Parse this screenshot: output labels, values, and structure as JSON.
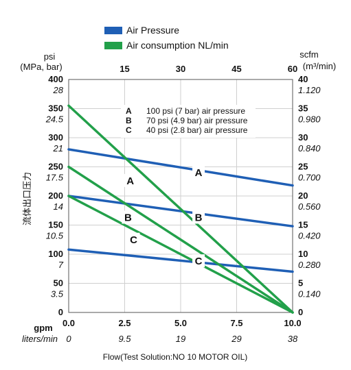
{
  "chart_data": {
    "type": "line",
    "legend": [
      {
        "label": "Air Pressure",
        "color": "#1f5fb5"
      },
      {
        "label": "Air consumption NL/min",
        "color": "#22a04a"
      }
    ],
    "legend_position": "top",
    "grid": true,
    "x_bottom": {
      "label": "gpm",
      "label2": "liters/min",
      "range": [
        0,
        10
      ],
      "ticks": [
        "0.0",
        "2.5",
        "5.0",
        "7.5",
        "10.0"
      ],
      "ticks2": [
        "0",
        "9.5",
        "19",
        "29",
        "38"
      ]
    },
    "x_top": {
      "ticks": [
        "15",
        "30",
        "45",
        "60"
      ]
    },
    "y_left": {
      "label": "psi",
      "label2": "(MPa, bar)",
      "side_label": "流体出口压力",
      "range": [
        0,
        400
      ],
      "ticks": [
        "0",
        "50",
        "100",
        "150",
        "200",
        "250",
        "300",
        "350",
        "400"
      ],
      "ticks2": [
        "",
        "3.5",
        "7",
        "10.5",
        "14",
        "17.5",
        "21",
        "24.5",
        "28"
      ]
    },
    "y_right": {
      "label": "scfm",
      "label2": "(m³/min)",
      "range": [
        0,
        40
      ],
      "ticks": [
        "0",
        "5",
        "10",
        "15",
        "20",
        "25",
        "30",
        "35",
        "40"
      ],
      "ticks2": [
        "",
        "0.140",
        "0.280",
        "0.420",
        "0.560",
        "0.700",
        "0.840",
        "0.980",
        "1.120"
      ]
    },
    "notes": [
      {
        "key": "A",
        "text": "100 psi (7 bar) air pressure"
      },
      {
        "key": "B",
        "text": "70 psi (4.9 bar) air pressure"
      },
      {
        "key": "C",
        "text": "40 psi (2.8 bar) air pressure"
      }
    ],
    "series": [
      {
        "name": "A",
        "kind": "pressure",
        "color": "#1f5fb5",
        "x": [
          0,
          10
        ],
        "y": [
          280,
          218
        ]
      },
      {
        "name": "B",
        "kind": "pressure",
        "color": "#1f5fb5",
        "x": [
          0,
          10
        ],
        "y": [
          200,
          148
        ]
      },
      {
        "name": "C",
        "kind": "pressure",
        "color": "#1f5fb5",
        "x": [
          0,
          10
        ],
        "y": [
          108,
          70
        ]
      },
      {
        "name": "A",
        "kind": "consumption",
        "color": "#22a04a",
        "x": [
          0,
          10
        ],
        "y": [
          35.5,
          0
        ]
      },
      {
        "name": "B",
        "kind": "consumption",
        "color": "#22a04a",
        "x": [
          0,
          10
        ],
        "y": [
          25,
          0
        ]
      },
      {
        "name": "C",
        "kind": "consumption",
        "color": "#22a04a",
        "x": [
          0,
          10
        ],
        "y": [
          20,
          0
        ]
      }
    ],
    "series_labels": [
      {
        "text": "A",
        "x": 2.75,
        "y": 226
      },
      {
        "text": "A",
        "x": 5.8,
        "y": 240
      },
      {
        "text": "B",
        "x": 2.65,
        "y": 163
      },
      {
        "text": "B",
        "x": 5.8,
        "y": 163
      },
      {
        "text": "C",
        "x": 2.9,
        "y": 125
      },
      {
        "text": "C",
        "x": 5.8,
        "y": 88
      }
    ],
    "footer": "Flow(Test Solution:NO 10 MOTOR OIL)"
  }
}
